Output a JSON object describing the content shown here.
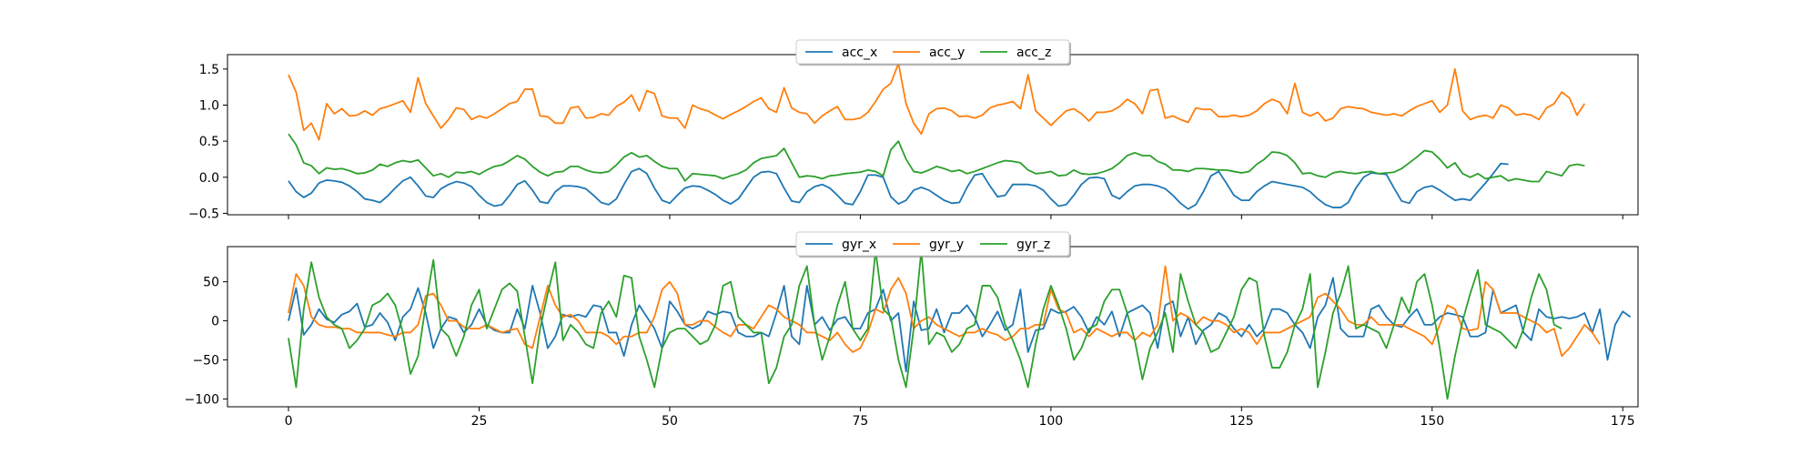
{
  "chart_data": [
    {
      "type": "line",
      "title": "",
      "xlabel": "",
      "ylabel": "",
      "xlim": [
        -8,
        177
      ],
      "ylim": [
        -0.52,
        1.7
      ],
      "xticks": [
        0,
        25,
        50,
        75,
        100,
        125,
        150,
        175
      ],
      "yticks": [
        -0.5,
        0.0,
        0.5,
        1.0,
        1.5
      ],
      "ytick_labels": [
        "−0.5",
        "0.0",
        "0.5",
        "1.0",
        "1.5"
      ],
      "show_xtick_labels": false,
      "legend_position": "top-center",
      "grid": false,
      "series": [
        {
          "name": "acc_x",
          "color": "#1f77b4",
          "values": [
            -0.05,
            -0.2,
            -0.28,
            -0.22,
            -0.08,
            -0.04,
            -0.05,
            -0.07,
            -0.12,
            -0.2,
            -0.3,
            -0.32,
            -0.35,
            -0.26,
            -0.15,
            -0.05,
            0.0,
            -0.12,
            -0.26,
            -0.28,
            -0.16,
            -0.1,
            -0.06,
            -0.08,
            -0.13,
            -0.25,
            -0.35,
            -0.4,
            -0.38,
            -0.25,
            -0.1,
            -0.05,
            -0.18,
            -0.34,
            -0.36,
            -0.2,
            -0.12,
            -0.12,
            -0.13,
            -0.16,
            -0.25,
            -0.35,
            -0.38,
            -0.3,
            -0.1,
            0.08,
            0.12,
            0.05,
            -0.15,
            -0.32,
            -0.36,
            -0.25,
            -0.15,
            -0.12,
            -0.13,
            -0.18,
            -0.24,
            -0.32,
            -0.37,
            -0.3,
            -0.15,
            0.0,
            0.07,
            0.08,
            0.05,
            -0.15,
            -0.33,
            -0.35,
            -0.2,
            -0.13,
            -0.1,
            -0.15,
            -0.25,
            -0.36,
            -0.38,
            -0.2,
            0.03,
            0.03,
            0.0,
            -0.27,
            -0.37,
            -0.32,
            -0.18,
            -0.14,
            -0.18,
            -0.25,
            -0.32,
            -0.36,
            -0.35,
            -0.14,
            0.03,
            0.05,
            -0.12,
            -0.27,
            -0.25,
            -0.1,
            -0.1,
            -0.1,
            -0.12,
            -0.18,
            -0.3,
            -0.4,
            -0.38,
            -0.25,
            -0.1,
            -0.01,
            0.0,
            -0.02,
            -0.25,
            -0.3,
            -0.2,
            -0.12,
            -0.1,
            -0.1,
            -0.12,
            -0.16,
            -0.25,
            -0.36,
            -0.44,
            -0.38,
            -0.2,
            0.02,
            0.08,
            -0.08,
            -0.25,
            -0.32,
            -0.32,
            -0.2,
            -0.12,
            -0.06,
            -0.08,
            -0.1,
            -0.12,
            -0.14,
            -0.2,
            -0.3,
            -0.38,
            -0.42,
            -0.42,
            -0.35,
            -0.15,
            0.0,
            0.06,
            0.05,
            0.04,
            -0.15,
            -0.33,
            -0.36,
            -0.2,
            -0.14,
            -0.12,
            -0.18,
            -0.25,
            -0.32,
            -0.3,
            -0.32,
            -0.2,
            -0.08,
            0.05,
            0.19,
            0.18
          ]
        },
        {
          "name": "acc_y",
          "color": "#ff7f0e",
          "values": [
            1.42,
            1.18,
            0.65,
            0.75,
            0.52,
            1.02,
            0.88,
            0.95,
            0.85,
            0.86,
            0.92,
            0.86,
            0.95,
            0.98,
            1.02,
            1.06,
            0.9,
            1.38,
            1.02,
            0.85,
            0.68,
            0.8,
            0.96,
            0.94,
            0.8,
            0.85,
            0.82,
            0.88,
            0.95,
            1.02,
            1.05,
            1.22,
            1.22,
            0.85,
            0.84,
            0.75,
            0.75,
            0.96,
            0.98,
            0.82,
            0.83,
            0.88,
            0.86,
            0.98,
            1.04,
            1.14,
            0.92,
            1.2,
            1.16,
            0.85,
            0.82,
            0.82,
            0.68,
            1.0,
            0.95,
            0.92,
            0.86,
            0.81,
            0.87,
            0.92,
            0.98,
            1.05,
            1.1,
            0.95,
            0.9,
            1.24,
            0.96,
            0.9,
            0.88,
            0.75,
            0.85,
            0.92,
            0.98,
            0.8,
            0.8,
            0.82,
            0.9,
            1.05,
            1.22,
            1.3,
            1.58,
            1.02,
            0.75,
            0.6,
            0.88,
            0.95,
            0.96,
            0.92,
            0.84,
            0.85,
            0.82,
            0.86,
            0.96,
            1.0,
            1.02,
            1.05,
            0.95,
            1.42,
            0.92,
            0.82,
            0.72,
            0.82,
            0.92,
            0.95,
            0.88,
            0.78,
            0.9,
            0.9,
            0.92,
            0.98,
            1.08,
            1.02,
            0.88,
            1.2,
            1.22,
            0.82,
            0.85,
            0.8,
            0.76,
            0.96,
            0.94,
            0.94,
            0.84,
            0.84,
            0.86,
            0.84,
            0.86,
            0.92,
            1.02,
            1.08,
            1.04,
            0.88,
            1.3,
            0.9,
            0.85,
            0.9,
            0.78,
            0.82,
            0.95,
            0.98,
            0.96,
            0.95,
            0.9,
            0.88,
            0.86,
            0.88,
            0.85,
            0.92,
            0.98,
            1.02,
            1.06,
            0.9,
            1.0,
            1.5,
            0.92,
            0.8,
            0.84,
            0.86,
            0.82,
            1.0,
            0.96,
            0.86,
            0.88,
            0.86,
            0.8,
            0.96,
            1.02,
            1.18,
            1.1,
            0.86,
            1.02
          ]
        },
        {
          "name": "acc_z",
          "color": "#2ca02c",
          "values": [
            0.6,
            0.45,
            0.2,
            0.16,
            0.05,
            0.13,
            0.11,
            0.12,
            0.09,
            0.05,
            0.06,
            0.1,
            0.18,
            0.15,
            0.2,
            0.23,
            0.21,
            0.24,
            0.13,
            0.02,
            0.05,
            0.0,
            0.07,
            0.06,
            0.08,
            0.04,
            0.1,
            0.15,
            0.17,
            0.23,
            0.3,
            0.25,
            0.15,
            0.07,
            0.02,
            0.07,
            0.08,
            0.15,
            0.15,
            0.1,
            0.07,
            0.06,
            0.08,
            0.17,
            0.28,
            0.34,
            0.28,
            0.3,
            0.22,
            0.15,
            0.12,
            0.12,
            -0.05,
            0.05,
            0.04,
            0.03,
            0.02,
            -0.02,
            0.02,
            0.05,
            0.1,
            0.2,
            0.26,
            0.28,
            0.3,
            0.4,
            0.2,
            0.0,
            0.02,
            0.01,
            -0.02,
            0.02,
            0.03,
            0.05,
            0.06,
            0.07,
            0.1,
            0.08,
            0.02,
            0.38,
            0.5,
            0.25,
            0.08,
            0.06,
            0.1,
            0.15,
            0.12,
            0.08,
            0.1,
            0.05,
            0.08,
            0.12,
            0.16,
            0.2,
            0.23,
            0.22,
            0.2,
            0.1,
            0.05,
            0.06,
            0.08,
            0.02,
            0.03,
            0.1,
            0.05,
            0.04,
            0.05,
            0.08,
            0.12,
            0.2,
            0.3,
            0.34,
            0.3,
            0.3,
            0.22,
            0.18,
            0.1,
            0.1,
            0.08,
            0.12,
            0.12,
            0.11,
            0.1,
            0.1,
            0.08,
            0.06,
            0.08,
            0.18,
            0.25,
            0.35,
            0.34,
            0.3,
            0.2,
            0.05,
            0.06,
            0.02,
            0.0,
            0.06,
            0.08,
            0.06,
            0.05,
            0.07,
            0.08,
            0.05,
            0.06,
            0.07,
            0.12,
            0.2,
            0.28,
            0.37,
            0.35,
            0.25,
            0.13,
            0.2,
            0.05,
            0.0,
            0.05,
            -0.02,
            0.0,
            0.02,
            -0.05,
            -0.02,
            -0.04,
            -0.06,
            -0.06,
            0.08,
            0.05,
            0.02,
            0.16,
            0.18,
            0.16
          ]
        }
      ]
    },
    {
      "type": "line",
      "title": "",
      "xlabel": "",
      "ylabel": "",
      "xlim": [
        -8,
        177
      ],
      "ylim": [
        -110,
        95
      ],
      "xticks": [
        0,
        25,
        50,
        75,
        100,
        125,
        150,
        175
      ],
      "yticks": [
        -100,
        -50,
        0,
        50
      ],
      "ytick_labels": [
        "−100",
        "−50",
        "0",
        "50"
      ],
      "show_xtick_labels": true,
      "legend_position": "top-center",
      "grid": false,
      "series": [
        {
          "name": "gyr_x",
          "color": "#1f77b4",
          "values": [
            0,
            42,
            -18,
            -5,
            15,
            2,
            -2,
            8,
            12,
            22,
            -8,
            -5,
            10,
            -2,
            -25,
            5,
            15,
            42,
            10,
            -35,
            -10,
            5,
            2,
            -15,
            -5,
            15,
            -5,
            -12,
            -15,
            -15,
            15,
            -10,
            45,
            10,
            -35,
            -20,
            8,
            5,
            8,
            5,
            20,
            18,
            -15,
            -15,
            -45,
            -5,
            20,
            5,
            -10,
            -35,
            25,
            12,
            -5,
            -10,
            -5,
            12,
            8,
            12,
            10,
            -15,
            -20,
            -20,
            -15,
            -20,
            10,
            45,
            -20,
            -30,
            45,
            -5,
            5,
            -12,
            2,
            5,
            -10,
            -10,
            10,
            15,
            40,
            0,
            10,
            -65,
            25,
            -12,
            -10,
            15,
            -15,
            10,
            10,
            20,
            5,
            -20,
            -5,
            12,
            -12,
            -5,
            40,
            -40,
            -12,
            -10,
            15,
            10,
            12,
            18,
            5,
            -15,
            5,
            -5,
            12,
            -20,
            10,
            15,
            20,
            10,
            -35,
            20,
            25,
            -20,
            5,
            -30,
            -12,
            -5,
            10,
            5,
            -10,
            -20,
            -5,
            -20,
            -10,
            15,
            15,
            10,
            -5,
            -15,
            -35,
            5,
            20,
            55,
            -10,
            -20,
            -20,
            -20,
            15,
            20,
            5,
            -5,
            -8,
            5,
            15,
            -5,
            -5,
            5,
            10,
            8,
            5,
            -20,
            -20,
            -15,
            40,
            10,
            15,
            20,
            -15,
            -25,
            15,
            5,
            3,
            5,
            3,
            5,
            10,
            -15,
            15,
            -50,
            -5,
            12,
            5
          ]
        },
        {
          "name": "gyr_y",
          "color": "#ff7f0e",
          "values": [
            10,
            60,
            45,
            5,
            -5,
            -8,
            -8,
            -10,
            -10,
            -15,
            -15,
            -15,
            -15,
            -18,
            -20,
            -15,
            -15,
            -5,
            32,
            35,
            20,
            0,
            0,
            -8,
            -10,
            -10,
            -5,
            -10,
            -15,
            -12,
            -10,
            -30,
            -35,
            5,
            45,
            20,
            5,
            8,
            0,
            -15,
            -15,
            -15,
            -20,
            -30,
            -20,
            -20,
            -15,
            -15,
            5,
            40,
            50,
            35,
            -5,
            -5,
            0,
            0,
            -8,
            -15,
            -20,
            -5,
            -5,
            -10,
            5,
            20,
            15,
            5,
            0,
            -5,
            -15,
            -15,
            -20,
            -25,
            -15,
            -30,
            -40,
            -35,
            -15,
            15,
            10,
            40,
            55,
            35,
            -10,
            0,
            5,
            -5,
            -10,
            -15,
            -20,
            -15,
            -15,
            -10,
            -15,
            -18,
            -25,
            -20,
            -10,
            -10,
            -5,
            -5,
            40,
            15,
            10,
            -15,
            -10,
            -20,
            -10,
            -15,
            -20,
            -15,
            -15,
            -25,
            -15,
            -20,
            -5,
            70,
            0,
            10,
            5,
            -5,
            5,
            0,
            0,
            -5,
            -15,
            -10,
            -15,
            -30,
            -15,
            -15,
            -15,
            -10,
            -5,
            0,
            5,
            30,
            35,
            25,
            15,
            0,
            -5,
            -5,
            5,
            -5,
            -5,
            -5,
            -5,
            -10,
            -15,
            -20,
            -30,
            -5,
            20,
            15,
            -10,
            -12,
            -10,
            50,
            40,
            10,
            10,
            10,
            5,
            0,
            -5,
            -15,
            -10,
            -45,
            -35,
            -20,
            -5,
            -15,
            -30
          ]
        },
        {
          "name": "gyr_z",
          "color": "#2ca02c",
          "values": [
            -22,
            -85,
            15,
            75,
            30,
            5,
            -5,
            -10,
            -35,
            -25,
            -10,
            20,
            25,
            35,
            20,
            -15,
            -68,
            -45,
            20,
            78,
            -10,
            -20,
            -45,
            -20,
            20,
            40,
            -10,
            15,
            40,
            48,
            38,
            -20,
            -80,
            -10,
            35,
            75,
            -25,
            -5,
            -15,
            -30,
            -35,
            10,
            25,
            5,
            58,
            55,
            -20,
            -50,
            -85,
            -35,
            -15,
            -10,
            -10,
            -20,
            -30,
            -25,
            -5,
            45,
            50,
            5,
            -5,
            -15,
            -15,
            -80,
            -60,
            -20,
            -5,
            45,
            70,
            -5,
            -50,
            -20,
            20,
            50,
            -10,
            -25,
            -10,
            90,
            15,
            5,
            -50,
            -85,
            -10,
            90,
            -30,
            -15,
            -20,
            -40,
            -30,
            -10,
            -5,
            45,
            45,
            30,
            -5,
            -25,
            -50,
            -85,
            -30,
            15,
            45,
            20,
            -10,
            -50,
            -35,
            -10,
            -5,
            25,
            40,
            40,
            10,
            -25,
            -75,
            -35,
            -15,
            10,
            -40,
            60,
            25,
            -5,
            -15,
            -40,
            -35,
            -15,
            5,
            40,
            55,
            50,
            -20,
            -60,
            -60,
            -40,
            -5,
            15,
            60,
            -85,
            -40,
            10,
            35,
            70,
            -10,
            -5,
            -10,
            -15,
            -35,
            -5,
            30,
            10,
            50,
            60,
            20,
            -35,
            -100,
            -45,
            0,
            35,
            65,
            -5,
            -10,
            -15,
            -25,
            -35,
            -10,
            30,
            60,
            40,
            -5,
            -10
          ]
        }
      ]
    }
  ]
}
